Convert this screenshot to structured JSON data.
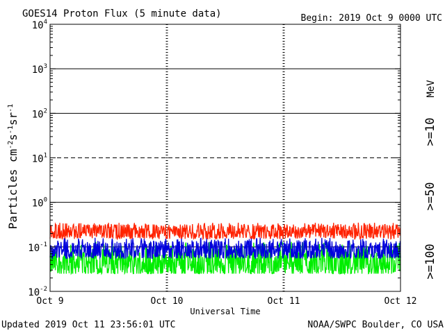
{
  "chart_data": {
    "type": "line",
    "title": "GOES14 Proton Flux (5 minute data)",
    "begin_label": "Begin: 2019 Oct 9 0000 UTC",
    "ylabel": "Particles cm",
    "ylabel_exponents": [
      "-2",
      "-1",
      "-1"
    ],
    "ylabel_units": [
      "s",
      "sr"
    ],
    "xlabel": "Universal Time",
    "updated_label": "Updated 2019 Oct 11 23:56:01 UTC",
    "source_label": "NOAA/SWPC Boulder, CO USA",
    "y_scale": "log",
    "ylim": [
      0.01,
      10000
    ],
    "xlim_days": [
      0,
      3
    ],
    "x_ticks": [
      {
        "label": "Oct 9",
        "day": 0
      },
      {
        "label": "Oct 10",
        "day": 1
      },
      {
        "label": "Oct 11",
        "day": 2
      },
      {
        "label": "Oct 12",
        "day": 3
      }
    ],
    "y_ticks": [
      {
        "base": "10",
        "exp": "-2",
        "value": 0.01
      },
      {
        "base": "10",
        "exp": "-1",
        "value": 0.1
      },
      {
        "base": "10",
        "exp": "0",
        "value": 1
      },
      {
        "base": "10",
        "exp": "1",
        "value": 10
      },
      {
        "base": "10",
        "exp": "2",
        "value": 100
      },
      {
        "base": "10",
        "exp": "3",
        "value": 1000
      },
      {
        "base": "10",
        "exp": "4",
        "value": 10000
      }
    ],
    "reference_lines": [
      {
        "value": 1000,
        "style": "solid"
      },
      {
        "value": 100,
        "style": "solid"
      },
      {
        "value": 10,
        "style": "dashed"
      },
      {
        "value": 1,
        "style": "solid"
      },
      {
        "value": 0.1,
        "style": "solid"
      }
    ],
    "grid": "dotted vertical day markers",
    "legend_placement": "right, vertical",
    "energy_unit_label": "MeV",
    "series": [
      {
        "name": ">=10",
        "color": "#ff2200",
        "low": 0.15,
        "high": 0.35,
        "typical": 0.22
      },
      {
        "name": ">=50",
        "color": "#0000dd",
        "low": 0.055,
        "high": 0.16,
        "typical": 0.085
      },
      {
        "name": ">=100",
        "color": "#00ee00",
        "low": 0.025,
        "high": 0.13,
        "typical": 0.045
      }
    ]
  }
}
